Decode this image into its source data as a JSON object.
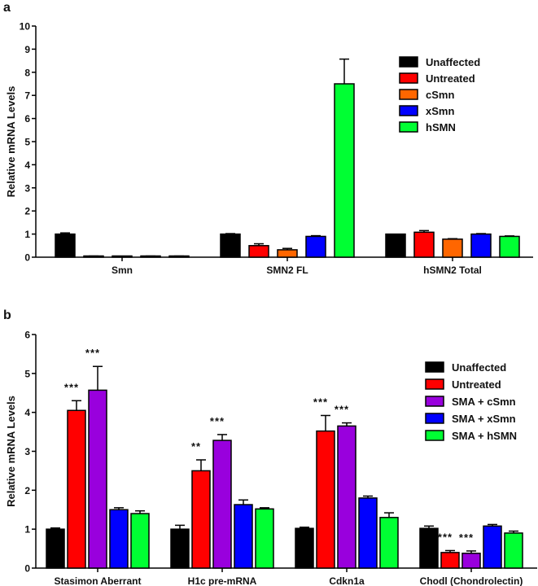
{
  "chart_data": [
    {
      "type": "bar",
      "panel_label": "a",
      "title": "",
      "xlabel": "",
      "ylabel": "Relative mRNA Levels",
      "ylim": [
        0,
        10
      ],
      "yticks": [
        "0",
        "1",
        "2",
        "3",
        "4",
        "5",
        "6",
        "7",
        "8",
        "9",
        "10"
      ],
      "categories": [
        "Smn",
        "SMN2 FL",
        "hSMN2 Total"
      ],
      "legend_position": "top-right",
      "grid": false,
      "series": [
        {
          "name": "Unaffected",
          "color": "#000000",
          "values": [
            1.0,
            1.0,
            1.0
          ],
          "error_upper": [
            1.05,
            1.02,
            1.0
          ]
        },
        {
          "name": "Untreated",
          "color": "#ff0000",
          "values": [
            0.03,
            0.5,
            1.08
          ],
          "error_upper": [
            0.05,
            0.58,
            1.15
          ]
        },
        {
          "name": "cSmn",
          "color": "#ff6600",
          "values": [
            0.02,
            0.32,
            0.78
          ],
          "error_upper": [
            0.04,
            0.38,
            0.8
          ]
        },
        {
          "name": "xSmn",
          "color": "#0000ff",
          "values": [
            0.03,
            0.9,
            1.0
          ],
          "error_upper": [
            0.05,
            0.93,
            1.02
          ]
        },
        {
          "name": "hSMN",
          "color": "#00ff33",
          "values": [
            0.03,
            7.5,
            0.9
          ],
          "error_upper": [
            0.05,
            8.57,
            0.92
          ]
        }
      ],
      "annotations": []
    },
    {
      "type": "bar",
      "panel_label": "b",
      "title": "",
      "xlabel": "",
      "ylabel": "Relative mRNA Levels",
      "ylim": [
        0,
        6
      ],
      "yticks": [
        "0",
        "1",
        "2",
        "3",
        "4",
        "5",
        "6"
      ],
      "categories": [
        "Stasimon Aberrant",
        "H1c pre-mRNA",
        "Cdkn1a",
        "Chodl (Chondrolectin)"
      ],
      "legend_position": "top-right",
      "grid": false,
      "series": [
        {
          "name": "Unaffected",
          "color": "#000000",
          "values": [
            1.0,
            1.0,
            1.02,
            1.02
          ],
          "error_upper": [
            1.03,
            1.1,
            1.05,
            1.08
          ]
        },
        {
          "name": "Untreated",
          "color": "#ff0000",
          "values": [
            4.05,
            2.5,
            3.52,
            0.4
          ],
          "error_upper": [
            4.3,
            2.78,
            3.92,
            0.45
          ]
        },
        {
          "name": "SMA + cSmn",
          "color": "#9900dd",
          "values": [
            4.57,
            3.28,
            3.65,
            0.38
          ],
          "error_upper": [
            5.18,
            3.43,
            3.73,
            0.44
          ]
        },
        {
          "name": "SMA + xSmn",
          "color": "#0000ff",
          "values": [
            1.5,
            1.63,
            1.8,
            1.08
          ],
          "error_upper": [
            1.55,
            1.75,
            1.85,
            1.12
          ]
        },
        {
          "name": "SMA + hSMN",
          "color": "#00ff33",
          "values": [
            1.4,
            1.52,
            1.3,
            0.9
          ],
          "error_upper": [
            1.47,
            1.55,
            1.42,
            0.95
          ]
        }
      ],
      "annotations": [
        {
          "text": "***",
          "category": 0,
          "series": 1
        },
        {
          "text": "***",
          "category": 0,
          "series": 2
        },
        {
          "text": "**",
          "category": 1,
          "series": 1
        },
        {
          "text": "***",
          "category": 1,
          "series": 2
        },
        {
          "text": "***",
          "category": 2,
          "series": 1
        },
        {
          "text": "***",
          "category": 2,
          "series": 2
        },
        {
          "text": "***",
          "category": 3,
          "series": 1
        },
        {
          "text": "***",
          "category": 3,
          "series": 2
        }
      ]
    }
  ]
}
